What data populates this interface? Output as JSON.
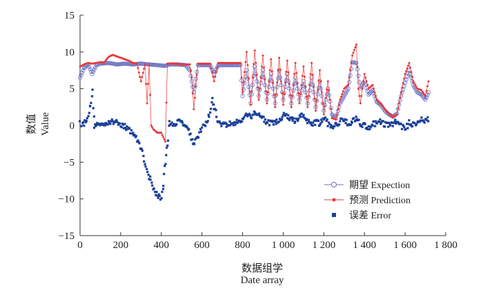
{
  "chart_data": {
    "type": "scatter",
    "xlabel_cn": "数据组学",
    "xlabel_en": "Date array",
    "ylabel_cn": "数值",
    "ylabel_en": "Value",
    "xlim": [
      0,
      1800
    ],
    "ylim": [
      -15,
      15
    ],
    "x_ticks": [
      0,
      200,
      400,
      600,
      800,
      1000,
      1200,
      1400,
      1600,
      1800
    ],
    "x_tick_labels": [
      "0",
      "200",
      "400",
      "600",
      "800",
      "1 000",
      "1 200",
      "1 400",
      "1 600",
      "1 800"
    ],
    "y_ticks": [
      -15,
      -10,
      -5,
      0,
      5,
      10,
      15
    ],
    "y_tick_labels": [
      "−15",
      "−10",
      "−5",
      "0",
      "5",
      "10",
      "15"
    ],
    "grid": false,
    "legend_position": "lower-right",
    "series": [
      {
        "name": "期望 Expection",
        "color": "#6a6fc0",
        "marker": "open-circle-line",
        "segments": [
          [
            0,
            6.5
          ],
          [
            20,
            7.8
          ],
          [
            40,
            8.3
          ],
          [
            60,
            7.0
          ],
          [
            80,
            8.2
          ],
          [
            100,
            8.4
          ],
          [
            140,
            8.5
          ],
          [
            180,
            8.3
          ],
          [
            220,
            8.4
          ],
          [
            260,
            8.3
          ],
          [
            300,
            8.4
          ],
          [
            340,
            8.3
          ],
          [
            380,
            8.2
          ],
          [
            420,
            8.1
          ],
          [
            440,
            8.3
          ],
          [
            480,
            8.3
          ],
          [
            520,
            8.2
          ],
          [
            540,
            7.5
          ],
          [
            560,
            4.5
          ],
          [
            580,
            8.2
          ],
          [
            600,
            8.2
          ],
          [
            640,
            8.2
          ],
          [
            660,
            7.0
          ],
          [
            680,
            8.2
          ],
          [
            720,
            8.2
          ],
          [
            760,
            8.2
          ],
          [
            790,
            8.2
          ],
          [
            800,
            4.0
          ],
          [
            820,
            7.5
          ],
          [
            840,
            3.0
          ],
          [
            860,
            8.0
          ],
          [
            880,
            4.0
          ],
          [
            900,
            7.5
          ],
          [
            920,
            3.5
          ],
          [
            940,
            7.0
          ],
          [
            960,
            3.0
          ],
          [
            980,
            7.5
          ],
          [
            1000,
            3.5
          ],
          [
            1020,
            7.0
          ],
          [
            1040,
            3.0
          ],
          [
            1060,
            6.5
          ],
          [
            1080,
            3.5
          ],
          [
            1100,
            6.0
          ],
          [
            1120,
            3.0
          ],
          [
            1140,
            6.5
          ],
          [
            1160,
            2.5
          ],
          [
            1180,
            6.0
          ],
          [
            1200,
            2.0
          ],
          [
            1220,
            5.0
          ],
          [
            1240,
            1.5
          ],
          [
            1260,
            1.0
          ],
          [
            1280,
            3.0
          ],
          [
            1300,
            4.0
          ],
          [
            1320,
            5.0
          ],
          [
            1340,
            8.6
          ],
          [
            1360,
            8.5
          ],
          [
            1380,
            5.0
          ],
          [
            1400,
            6.0
          ],
          [
            1420,
            4.2
          ],
          [
            1440,
            4.8
          ],
          [
            1460,
            3.2
          ],
          [
            1480,
            2.8
          ],
          [
            1500,
            2.0
          ],
          [
            1520,
            1.5
          ],
          [
            1540,
            1.2
          ],
          [
            1560,
            1.6
          ],
          [
            1580,
            4.0
          ],
          [
            1600,
            5.8
          ],
          [
            1620,
            7.5
          ],
          [
            1640,
            5.5
          ],
          [
            1660,
            4.5
          ],
          [
            1680,
            4.2
          ],
          [
            1700,
            3.5
          ],
          [
            1715,
            4.5
          ]
        ]
      },
      {
        "name": "预测 Prediction",
        "color": "#e83a3a",
        "marker": "filled-dot-line",
        "segments": [
          [
            0,
            8.0
          ],
          [
            20,
            8.3
          ],
          [
            40,
            8.5
          ],
          [
            60,
            8.4
          ],
          [
            80,
            8.5
          ],
          [
            100,
            8.6
          ],
          [
            120,
            8.6
          ],
          [
            140,
            9.3
          ],
          [
            160,
            9.6
          ],
          [
            180,
            9.4
          ],
          [
            200,
            9.2
          ],
          [
            220,
            9.0
          ],
          [
            240,
            8.8
          ],
          [
            260,
            8.5
          ],
          [
            280,
            8.4
          ],
          [
            300,
            6.0
          ],
          [
            320,
            8.3
          ],
          [
            330,
            3.0
          ],
          [
            340,
            8.3
          ],
          [
            350,
            0.0
          ],
          [
            360,
            -0.5
          ],
          [
            380,
            -1.0
          ],
          [
            400,
            -1.0
          ],
          [
            420,
            -2.2
          ],
          [
            430,
            8.4
          ],
          [
            460,
            8.4
          ],
          [
            500,
            8.3
          ],
          [
            540,
            8.3
          ],
          [
            550,
            6.5
          ],
          [
            560,
            2.2
          ],
          [
            580,
            8.4
          ],
          [
            620,
            8.4
          ],
          [
            640,
            8.4
          ],
          [
            660,
            6.0
          ],
          [
            680,
            8.5
          ],
          [
            720,
            8.5
          ],
          [
            760,
            8.5
          ],
          [
            790,
            8.5
          ],
          [
            800,
            4.5
          ],
          [
            820,
            10.0
          ],
          [
            840,
            2.8
          ],
          [
            860,
            10.2
          ],
          [
            880,
            3.5
          ],
          [
            900,
            9.5
          ],
          [
            920,
            3.0
          ],
          [
            940,
            9.0
          ],
          [
            960,
            2.5
          ],
          [
            980,
            9.2
          ],
          [
            1000,
            2.8
          ],
          [
            1020,
            8.8
          ],
          [
            1040,
            2.5
          ],
          [
            1060,
            8.5
          ],
          [
            1080,
            3.0
          ],
          [
            1100,
            8.0
          ],
          [
            1120,
            2.5
          ],
          [
            1140,
            8.5
          ],
          [
            1160,
            2.0
          ],
          [
            1180,
            7.5
          ],
          [
            1200,
            1.5
          ],
          [
            1220,
            6.0
          ],
          [
            1240,
            1.0
          ],
          [
            1260,
            0.8
          ],
          [
            1280,
            3.5
          ],
          [
            1300,
            5.0
          ],
          [
            1320,
            5.5
          ],
          [
            1340,
            9.5
          ],
          [
            1360,
            11.0
          ],
          [
            1370,
            5.0
          ],
          [
            1380,
            3.0
          ],
          [
            1400,
            7.0
          ],
          [
            1420,
            5.0
          ],
          [
            1440,
            5.5
          ],
          [
            1460,
            3.5
          ],
          [
            1480,
            3.0
          ],
          [
            1500,
            2.2
          ],
          [
            1520,
            1.6
          ],
          [
            1540,
            1.1
          ],
          [
            1560,
            1.5
          ],
          [
            1580,
            4.5
          ],
          [
            1600,
            7.0
          ],
          [
            1620,
            8.5
          ],
          [
            1640,
            6.0
          ],
          [
            1660,
            5.0
          ],
          [
            1680,
            4.8
          ],
          [
            1700,
            4.0
          ],
          [
            1715,
            6.0
          ]
        ]
      },
      {
        "name": "误差 Error",
        "color": "#1a3f9a",
        "marker": "filled-square",
        "segments": [
          [
            0,
            0.3
          ],
          [
            20,
            0.2
          ],
          [
            40,
            1.5
          ],
          [
            50,
            2.5
          ],
          [
            60,
            4.5
          ],
          [
            70,
            0.0
          ],
          [
            80,
            0.2
          ],
          [
            100,
            0.0
          ],
          [
            120,
            0.3
          ],
          [
            140,
            0.5
          ],
          [
            160,
            0.4
          ],
          [
            180,
            0.6
          ],
          [
            200,
            0.2
          ],
          [
            220,
            -0.2
          ],
          [
            240,
            -0.5
          ],
          [
            260,
            -1.0
          ],
          [
            280,
            -2.0
          ],
          [
            300,
            -3.0
          ],
          [
            320,
            -5.0
          ],
          [
            340,
            -7.0
          ],
          [
            360,
            -8.5
          ],
          [
            380,
            -9.5
          ],
          [
            400,
            -10.0
          ],
          [
            410,
            -8.0
          ],
          [
            420,
            -5.0
          ],
          [
            430,
            -3.0
          ],
          [
            440,
            0.3
          ],
          [
            460,
            0.2
          ],
          [
            480,
            0.4
          ],
          [
            500,
            0.5
          ],
          [
            520,
            0.2
          ],
          [
            540,
            -1.0
          ],
          [
            560,
            -2.5
          ],
          [
            580,
            -1.5
          ],
          [
            600,
            -0.5
          ],
          [
            620,
            0.5
          ],
          [
            640,
            1.5
          ],
          [
            650,
            3.5
          ],
          [
            660,
            2.5
          ],
          [
            680,
            0.5
          ],
          [
            700,
            0.2
          ],
          [
            720,
            0.0
          ],
          [
            740,
            0.3
          ],
          [
            760,
            0.2
          ],
          [
            780,
            0.5
          ],
          [
            800,
            1.0
          ],
          [
            820,
            1.5
          ],
          [
            840,
            1.2
          ],
          [
            860,
            1.8
          ],
          [
            880,
            1.5
          ],
          [
            900,
            1.0
          ],
          [
            920,
            0.5
          ],
          [
            940,
            0.2
          ],
          [
            960,
            0.5
          ],
          [
            980,
            0.3
          ],
          [
            1000,
            1.5
          ],
          [
            1020,
            1.2
          ],
          [
            1040,
            0.8
          ],
          [
            1060,
            0.5
          ],
          [
            1080,
            1.0
          ],
          [
            1100,
            1.5
          ],
          [
            1120,
            0.5
          ],
          [
            1140,
            0.0
          ],
          [
            1160,
            0.5
          ],
          [
            1180,
            0.2
          ],
          [
            1200,
            1.0
          ],
          [
            1220,
            0.3
          ],
          [
            1240,
            -0.2
          ],
          [
            1260,
            0.0
          ],
          [
            1280,
            0.5
          ],
          [
            1300,
            1.0
          ],
          [
            1320,
            0.2
          ],
          [
            1340,
            0.5
          ],
          [
            1360,
            1.0
          ],
          [
            1380,
            0.3
          ],
          [
            1400,
            0.0
          ],
          [
            1420,
            -0.3
          ],
          [
            1440,
            0.2
          ],
          [
            1460,
            0.3
          ],
          [
            1480,
            0.5
          ],
          [
            1500,
            0.2
          ],
          [
            1520,
            0.0
          ],
          [
            1540,
            0.3
          ],
          [
            1560,
            0.5
          ],
          [
            1580,
            0.0
          ],
          [
            1600,
            -0.5
          ],
          [
            1620,
            0.3
          ],
          [
            1640,
            0.2
          ],
          [
            1660,
            0.5
          ],
          [
            1680,
            0.8
          ],
          [
            1700,
            0.5
          ],
          [
            1715,
            0.8
          ]
        ]
      }
    ]
  }
}
